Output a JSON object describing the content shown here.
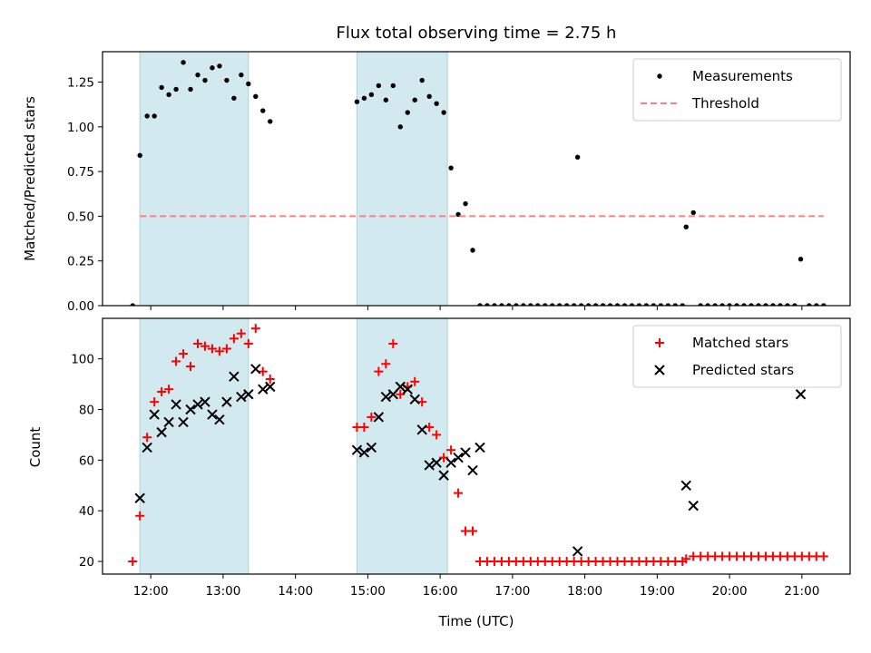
{
  "chart_data": [
    {
      "type": "scatter",
      "title": "Flux total observing time = 2.75 h",
      "xlabel": "",
      "ylabel": "Matched/Predicted stars",
      "xlim": [
        "11:20",
        "21:40"
      ],
      "ylim": [
        0,
        1.42
      ],
      "y_ticks": [
        0.0,
        0.25,
        0.5,
        0.75,
        1.0,
        1.25
      ],
      "y_tick_labels": [
        "0.00",
        "0.25",
        "0.50",
        "0.75",
        "1.00",
        "1.25"
      ],
      "legend_position": "top-right",
      "shaded_intervals": [
        [
          "11:51",
          "13:21"
        ],
        [
          "14:51",
          "16:06"
        ]
      ],
      "shade_color": "#d3e9f0",
      "series": [
        {
          "name": "Measurements",
          "marker": "dot",
          "color": "#000000",
          "points": [
            [
              "11:45",
              0.0
            ],
            [
              "11:51",
              0.84
            ],
            [
              "11:57",
              1.06
            ],
            [
              "12:03",
              1.06
            ],
            [
              "12:09",
              1.22
            ],
            [
              "12:15",
              1.18
            ],
            [
              "12:21",
              1.21
            ],
            [
              "12:27",
              1.36
            ],
            [
              "12:33",
              1.21
            ],
            [
              "12:39",
              1.29
            ],
            [
              "12:45",
              1.26
            ],
            [
              "12:51",
              1.33
            ],
            [
              "12:57",
              1.34
            ],
            [
              "13:03",
              1.26
            ],
            [
              "13:09",
              1.16
            ],
            [
              "13:15",
              1.29
            ],
            [
              "13:21",
              1.24
            ],
            [
              "13:27",
              1.17
            ],
            [
              "13:33",
              1.09
            ],
            [
              "13:39",
              1.03
            ],
            [
              "14:51",
              1.14
            ],
            [
              "14:57",
              1.16
            ],
            [
              "15:03",
              1.18
            ],
            [
              "15:09",
              1.23
            ],
            [
              "15:15",
              1.15
            ],
            [
              "15:21",
              1.23
            ],
            [
              "15:27",
              1.0
            ],
            [
              "15:33",
              1.08
            ],
            [
              "15:39",
              1.15
            ],
            [
              "15:45",
              1.26
            ],
            [
              "15:51",
              1.17
            ],
            [
              "15:57",
              1.13
            ],
            [
              "16:03",
              1.08
            ],
            [
              "16:09",
              0.77
            ],
            [
              "16:15",
              0.51
            ],
            [
              "16:21",
              0.57
            ],
            [
              "16:27",
              0.31
            ],
            [
              "16:33",
              0.0
            ],
            [
              "16:39",
              0.0
            ],
            [
              "16:45",
              0.0
            ],
            [
              "16:51",
              0.0
            ],
            [
              "16:57",
              0.0
            ],
            [
              "17:03",
              0.0
            ],
            [
              "17:09",
              0.0
            ],
            [
              "17:15",
              0.0
            ],
            [
              "17:21",
              0.0
            ],
            [
              "17:27",
              0.0
            ],
            [
              "17:33",
              0.0
            ],
            [
              "17:39",
              0.0
            ],
            [
              "17:45",
              0.0
            ],
            [
              "17:51",
              0.0
            ],
            [
              "17:57",
              0.0
            ],
            [
              "18:03",
              0.0
            ],
            [
              "18:09",
              0.0
            ],
            [
              "18:15",
              0.0
            ],
            [
              "17:54",
              0.83
            ],
            [
              "18:21",
              0.0
            ],
            [
              "18:27",
              0.0
            ],
            [
              "18:33",
              0.0
            ],
            [
              "18:39",
              0.0
            ],
            [
              "18:45",
              0.0
            ],
            [
              "18:51",
              0.0
            ],
            [
              "18:57",
              0.0
            ],
            [
              "19:03",
              0.0
            ],
            [
              "19:09",
              0.0
            ],
            [
              "19:15",
              0.0
            ],
            [
              "19:21",
              0.0
            ],
            [
              "19:24",
              0.44
            ],
            [
              "19:30",
              0.52
            ],
            [
              "19:36",
              0.0
            ],
            [
              "19:42",
              0.0
            ],
            [
              "19:48",
              0.0
            ],
            [
              "19:54",
              0.0
            ],
            [
              "20:00",
              0.0
            ],
            [
              "20:06",
              0.0
            ],
            [
              "20:12",
              0.0
            ],
            [
              "20:18",
              0.0
            ],
            [
              "20:24",
              0.0
            ],
            [
              "20:30",
              0.0
            ],
            [
              "20:36",
              0.0
            ],
            [
              "20:42",
              0.0
            ],
            [
              "20:48",
              0.0
            ],
            [
              "20:54",
              0.0
            ],
            [
              "20:59",
              0.26
            ],
            [
              "21:06",
              0.0
            ],
            [
              "21:12",
              0.0
            ],
            [
              "21:18",
              0.0
            ]
          ]
        },
        {
          "name": "Threshold",
          "style": "dashed",
          "color": "#ff7f7f",
          "points": [
            [
              "11:51",
              0.5
            ],
            [
              "21:18",
              0.5
            ]
          ]
        }
      ]
    },
    {
      "type": "scatter",
      "title": "",
      "xlabel": "Time (UTC)",
      "ylabel": "Count",
      "xlim": [
        "11:20",
        "21:40"
      ],
      "ylim": [
        15,
        116
      ],
      "y_ticks": [
        20,
        40,
        60,
        80,
        100
      ],
      "y_tick_labels": [
        "20",
        "40",
        "60",
        "80",
        "100"
      ],
      "x_ticks": [
        "12:00",
        "13:00",
        "14:00",
        "15:00",
        "16:00",
        "17:00",
        "18:00",
        "19:00",
        "20:00",
        "21:00"
      ],
      "legend_position": "top-right",
      "shaded_intervals": [
        [
          "11:51",
          "13:21"
        ],
        [
          "14:51",
          "16:06"
        ]
      ],
      "shade_color": "#d3e9f0",
      "series": [
        {
          "name": "Matched stars",
          "marker": "plus",
          "color": "#ff0000",
          "points": [
            [
              "11:45",
              20
            ],
            [
              "11:51",
              38
            ],
            [
              "11:57",
              69
            ],
            [
              "12:03",
              83
            ],
            [
              "12:09",
              87
            ],
            [
              "12:15",
              88
            ],
            [
              "12:21",
              99
            ],
            [
              "12:27",
              102
            ],
            [
              "12:33",
              97
            ],
            [
              "12:39",
              106
            ],
            [
              "12:45",
              105
            ],
            [
              "12:51",
              104
            ],
            [
              "12:57",
              103
            ],
            [
              "13:03",
              104
            ],
            [
              "13:09",
              108
            ],
            [
              "13:15",
              110
            ],
            [
              "13:21",
              106
            ],
            [
              "13:27",
              112
            ],
            [
              "13:33",
              95
            ],
            [
              "13:39",
              92
            ],
            [
              "14:51",
              73
            ],
            [
              "14:57",
              73
            ],
            [
              "15:03",
              77
            ],
            [
              "15:09",
              95
            ],
            [
              "15:15",
              98
            ],
            [
              "15:21",
              106
            ],
            [
              "15:27",
              86
            ],
            [
              "15:33",
              89
            ],
            [
              "15:39",
              91
            ],
            [
              "15:45",
              83
            ],
            [
              "15:51",
              73
            ],
            [
              "15:57",
              70
            ],
            [
              "16:03",
              61
            ],
            [
              "16:09",
              64
            ],
            [
              "16:15",
              47
            ],
            [
              "16:21",
              32
            ],
            [
              "16:27",
              32
            ],
            [
              "16:33",
              20
            ],
            [
              "16:39",
              20
            ],
            [
              "16:45",
              20
            ],
            [
              "16:51",
              20
            ],
            [
              "16:57",
              20
            ],
            [
              "17:03",
              20
            ],
            [
              "17:09",
              20
            ],
            [
              "17:15",
              20
            ],
            [
              "17:21",
              20
            ],
            [
              "17:27",
              20
            ],
            [
              "17:33",
              20
            ],
            [
              "17:39",
              20
            ],
            [
              "17:45",
              20
            ],
            [
              "17:51",
              20
            ],
            [
              "17:57",
              20
            ],
            [
              "18:03",
              20
            ],
            [
              "18:09",
              20
            ],
            [
              "18:15",
              20
            ],
            [
              "18:21",
              20
            ],
            [
              "18:27",
              20
            ],
            [
              "18:33",
              20
            ],
            [
              "18:39",
              20
            ],
            [
              "18:45",
              20
            ],
            [
              "18:51",
              20
            ],
            [
              "18:57",
              20
            ],
            [
              "19:03",
              20
            ],
            [
              "19:09",
              20
            ],
            [
              "19:15",
              20
            ],
            [
              "19:21",
              20
            ],
            [
              "19:24",
              21
            ],
            [
              "19:30",
              22
            ],
            [
              "19:36",
              22
            ],
            [
              "19:42",
              22
            ],
            [
              "19:48",
              22
            ],
            [
              "19:54",
              22
            ],
            [
              "20:00",
              22
            ],
            [
              "20:06",
              22
            ],
            [
              "20:12",
              22
            ],
            [
              "20:18",
              22
            ],
            [
              "20:24",
              22
            ],
            [
              "20:30",
              22
            ],
            [
              "20:36",
              22
            ],
            [
              "20:42",
              22
            ],
            [
              "20:48",
              22
            ],
            [
              "20:54",
              22
            ],
            [
              "21:00",
              22
            ],
            [
              "21:06",
              22
            ],
            [
              "21:12",
              22
            ],
            [
              "21:18",
              22
            ]
          ]
        },
        {
          "name": "Predicted stars",
          "marker": "x",
          "color": "#000000",
          "points": [
            [
              "11:51",
              45
            ],
            [
              "11:57",
              65
            ],
            [
              "12:03",
              78
            ],
            [
              "12:09",
              71
            ],
            [
              "12:15",
              75
            ],
            [
              "12:21",
              82
            ],
            [
              "12:27",
              75
            ],
            [
              "12:33",
              80
            ],
            [
              "12:39",
              82
            ],
            [
              "12:45",
              83
            ],
            [
              "12:51",
              78
            ],
            [
              "12:57",
              76
            ],
            [
              "13:03",
              83
            ],
            [
              "13:09",
              93
            ],
            [
              "13:15",
              85
            ],
            [
              "13:21",
              86
            ],
            [
              "13:27",
              96
            ],
            [
              "13:33",
              88
            ],
            [
              "13:39",
              89
            ],
            [
              "14:51",
              64
            ],
            [
              "14:57",
              63
            ],
            [
              "15:03",
              65
            ],
            [
              "15:09",
              77
            ],
            [
              "15:15",
              85
            ],
            [
              "15:21",
              86
            ],
            [
              "15:27",
              89
            ],
            [
              "15:33",
              88
            ],
            [
              "15:39",
              84
            ],
            [
              "15:45",
              72
            ],
            [
              "15:51",
              58
            ],
            [
              "15:57",
              59
            ],
            [
              "16:03",
              54
            ],
            [
              "16:09",
              59
            ],
            [
              "16:15",
              61
            ],
            [
              "16:21",
              63
            ],
            [
              "16:27",
              56
            ],
            [
              "16:33",
              65
            ],
            [
              "17:54",
              24
            ],
            [
              "19:24",
              50
            ],
            [
              "19:30",
              42
            ],
            [
              "20:59",
              86
            ]
          ]
        }
      ]
    }
  ]
}
